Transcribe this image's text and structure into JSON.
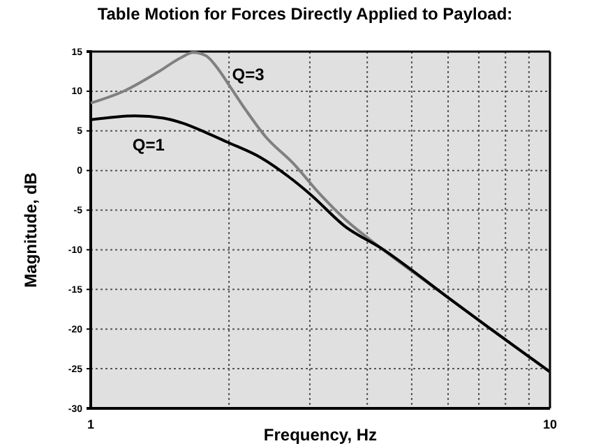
{
  "chart_data": {
    "type": "line",
    "title": "Table Motion for Forces Directly Applied to Payload:",
    "xlabel": "Frequency, Hz",
    "ylabel": "Magnitude, dB",
    "log": "x",
    "grid": true,
    "line_style": "solid",
    "marker": "none",
    "xlim": [
      1,
      10
    ],
    "xticks": [
      1,
      {
        "value": 2,
        "label": null
      },
      {
        "value": 3,
        "label": null
      },
      {
        "value": 4,
        "label": null
      },
      {
        "value": 5,
        "label": null
      },
      {
        "value": 6,
        "label": null
      },
      {
        "value": 7,
        "label": null
      },
      {
        "value": 8,
        "label": null
      },
      {
        "value": 9,
        "label": null
      },
      10
    ],
    "ylim": [
      -30,
      15
    ],
    "yticks": [
      15,
      10,
      5,
      0,
      -5,
      -10,
      -15,
      -20,
      -25,
      -30
    ],
    "series": [
      {
        "name": "Q=3",
        "color": "#808080",
        "x": [
          1,
          1.19,
          1.4,
          1.58,
          1.67,
          1.78,
          1.9,
          2.01,
          2.19,
          2.4,
          2.76,
          3.17,
          3.57,
          4.29,
          5.96,
          7.35,
          10
        ],
        "values": [
          8.5,
          10.1,
          12.4,
          14.3,
          14.9,
          14.5,
          12.7,
          10.6,
          7.4,
          4.3,
          0.9,
          -3.1,
          -6.1,
          -9.8,
          -15.9,
          -19.8,
          -25.4
        ]
      },
      {
        "name": "Q=1",
        "color": "#000000",
        "x": [
          1,
          1.25,
          1.44,
          1.58,
          1.78,
          1.98,
          2.35,
          2.7,
          3.02,
          3.57,
          4.29,
          5.96,
          7.35,
          10
        ],
        "values": [
          6.4,
          6.9,
          6.6,
          6.0,
          4.8,
          3.6,
          1.6,
          -0.8,
          -3.1,
          -7.0,
          -9.8,
          -15.9,
          -19.8,
          -25.4
        ]
      }
    ]
  }
}
